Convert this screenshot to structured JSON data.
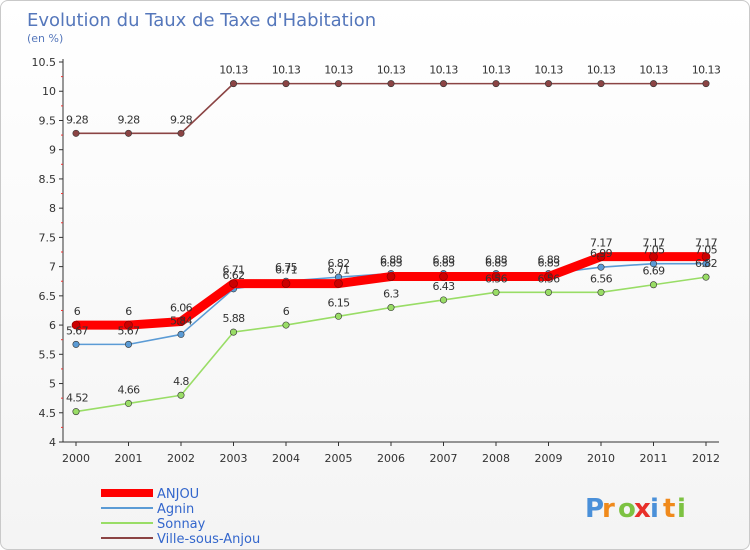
{
  "chart_data": {
    "type": "line",
    "title": "Evolution du Taux de Taxe d'Habitation",
    "subtitle": "(en %)",
    "x": [
      "2000",
      "2001",
      "2002",
      "2003",
      "2004",
      "2005",
      "2006",
      "2007",
      "2008",
      "2009",
      "2010",
      "2011",
      "2012"
    ],
    "ylim": [
      4,
      10.5
    ],
    "yticks": [
      "4",
      "4.5",
      "5",
      "5.5",
      "6",
      "6.5",
      "7",
      "7.5",
      "8",
      "8.5",
      "9",
      "9.5",
      "10",
      "10.5"
    ],
    "grid": false,
    "legend_position": "bottom-left",
    "series": [
      {
        "name": "ANJOU",
        "color": "#ff0000",
        "values": [
          6,
          6,
          6.06,
          6.71,
          6.71,
          6.71,
          6.83,
          6.83,
          6.83,
          6.83,
          7.17,
          7.17,
          7.17
        ]
      },
      {
        "name": "Agnin",
        "color": "#5b9bd5",
        "values": [
          5.67,
          5.67,
          5.84,
          6.62,
          6.75,
          6.82,
          6.88,
          6.88,
          6.88,
          6.88,
          6.99,
          7.05,
          7.05
        ]
      },
      {
        "name": "Sonnay",
        "color": "#99dd66",
        "values": [
          4.52,
          4.66,
          4.8,
          5.88,
          6,
          6.15,
          6.3,
          6.43,
          6.56,
          6.56,
          6.56,
          6.69,
          6.82
        ]
      },
      {
        "name": "Ville-sous-Anjou",
        "color": "#8b4444",
        "values": [
          9.28,
          9.28,
          9.28,
          10.13,
          10.13,
          10.13,
          10.13,
          10.13,
          10.13,
          10.13,
          10.13,
          10.13,
          10.13
        ]
      }
    ],
    "labels": {
      "ANJOU": [
        "6",
        "6",
        "6.06",
        "6.71",
        "6.71",
        "6.71",
        "6.83",
        "6.83",
        "6.83",
        "6.83",
        "7.17",
        "7.17",
        "7.17"
      ],
      "Agnin": [
        "5.67",
        "5.67",
        "5.84",
        "6.62",
        "6.75",
        "6.82",
        "6.88",
        "6.88",
        "6.88",
        "6.88",
        "6.99",
        "7.05",
        "7.05"
      ],
      "Sonnay": [
        "4.52",
        "4.66",
        "4.8",
        "5.88",
        "6",
        "6.15",
        "6.3",
        "6.43",
        "6.56",
        "6.56",
        "6.56",
        "6.69",
        "6.82"
      ],
      "Ville-sous-Anjou": [
        "9.28",
        "9.28",
        "9.28",
        "10.13",
        "10.13",
        "10.13",
        "10.13",
        "10.13",
        "10.13",
        "10.13",
        "10.13",
        "10.13",
        "10.13"
      ]
    }
  },
  "logo": {
    "text": "Proxiti",
    "letters": [
      "P",
      "r",
      "o",
      "x",
      "i",
      "t",
      "i"
    ],
    "colors": [
      "#4a90d9",
      "#f08a1c",
      "#7dc242",
      "#e8302a",
      "#4a90d9",
      "#f08a1c",
      "#7dc242"
    ]
  }
}
